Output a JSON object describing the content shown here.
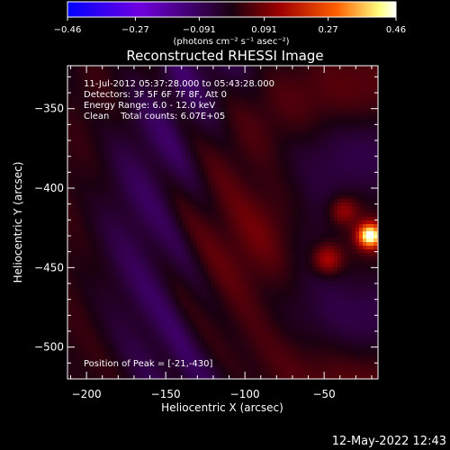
{
  "chart_data": {
    "type": "heatmap",
    "title": "Reconstructed RHESSI Image",
    "xlabel": "Heliocentric X (arcsec)",
    "ylabel": "Heliocentric Y (arcsec)",
    "xlim": [
      -212,
      -16
    ],
    "ylim": [
      -520,
      -323
    ],
    "x_ticks": [
      -200,
      -150,
      -100,
      -50
    ],
    "x_tick_labels": [
      "−200",
      "−150",
      "−100",
      "−50"
    ],
    "y_ticks": [
      -350,
      -400,
      -450,
      -500
    ],
    "y_tick_labels": [
      "−350",
      "−400",
      "−450",
      "−500"
    ],
    "colorbar": {
      "min": -0.46,
      "max": 0.46,
      "ticks": [
        -0.46,
        -0.27,
        -0.091,
        0.091,
        0.27,
        0.46
      ],
      "tick_labels": [
        "−0.46",
        "−0.27",
        "−0.091",
        "0.091",
        "0.27",
        "0.46"
      ],
      "units": "(photons cm⁻² s⁻¹ asec⁻²)",
      "colors": [
        "#0000ff",
        "#7000e0",
        "#1a0010",
        "#a00000",
        "#ff6000",
        "#ffff80",
        "#ffffff"
      ]
    },
    "peak": {
      "x": -21,
      "y": -430,
      "value": 0.46
    },
    "annotations": {
      "time": "11-Jul-2012 05:37:28.000 to 05:43:28.000",
      "detectors": "Detectors: 3F 5F 6F 7F 8F, Att 0",
      "energy": "Energy Range: 6.0 - 12.0 keV",
      "clean": "Clean    Total counts: 6.07E+05",
      "peak_text": "Position of Peak = [-21,-430]"
    },
    "footer": "12-May-2022 12:43"
  }
}
